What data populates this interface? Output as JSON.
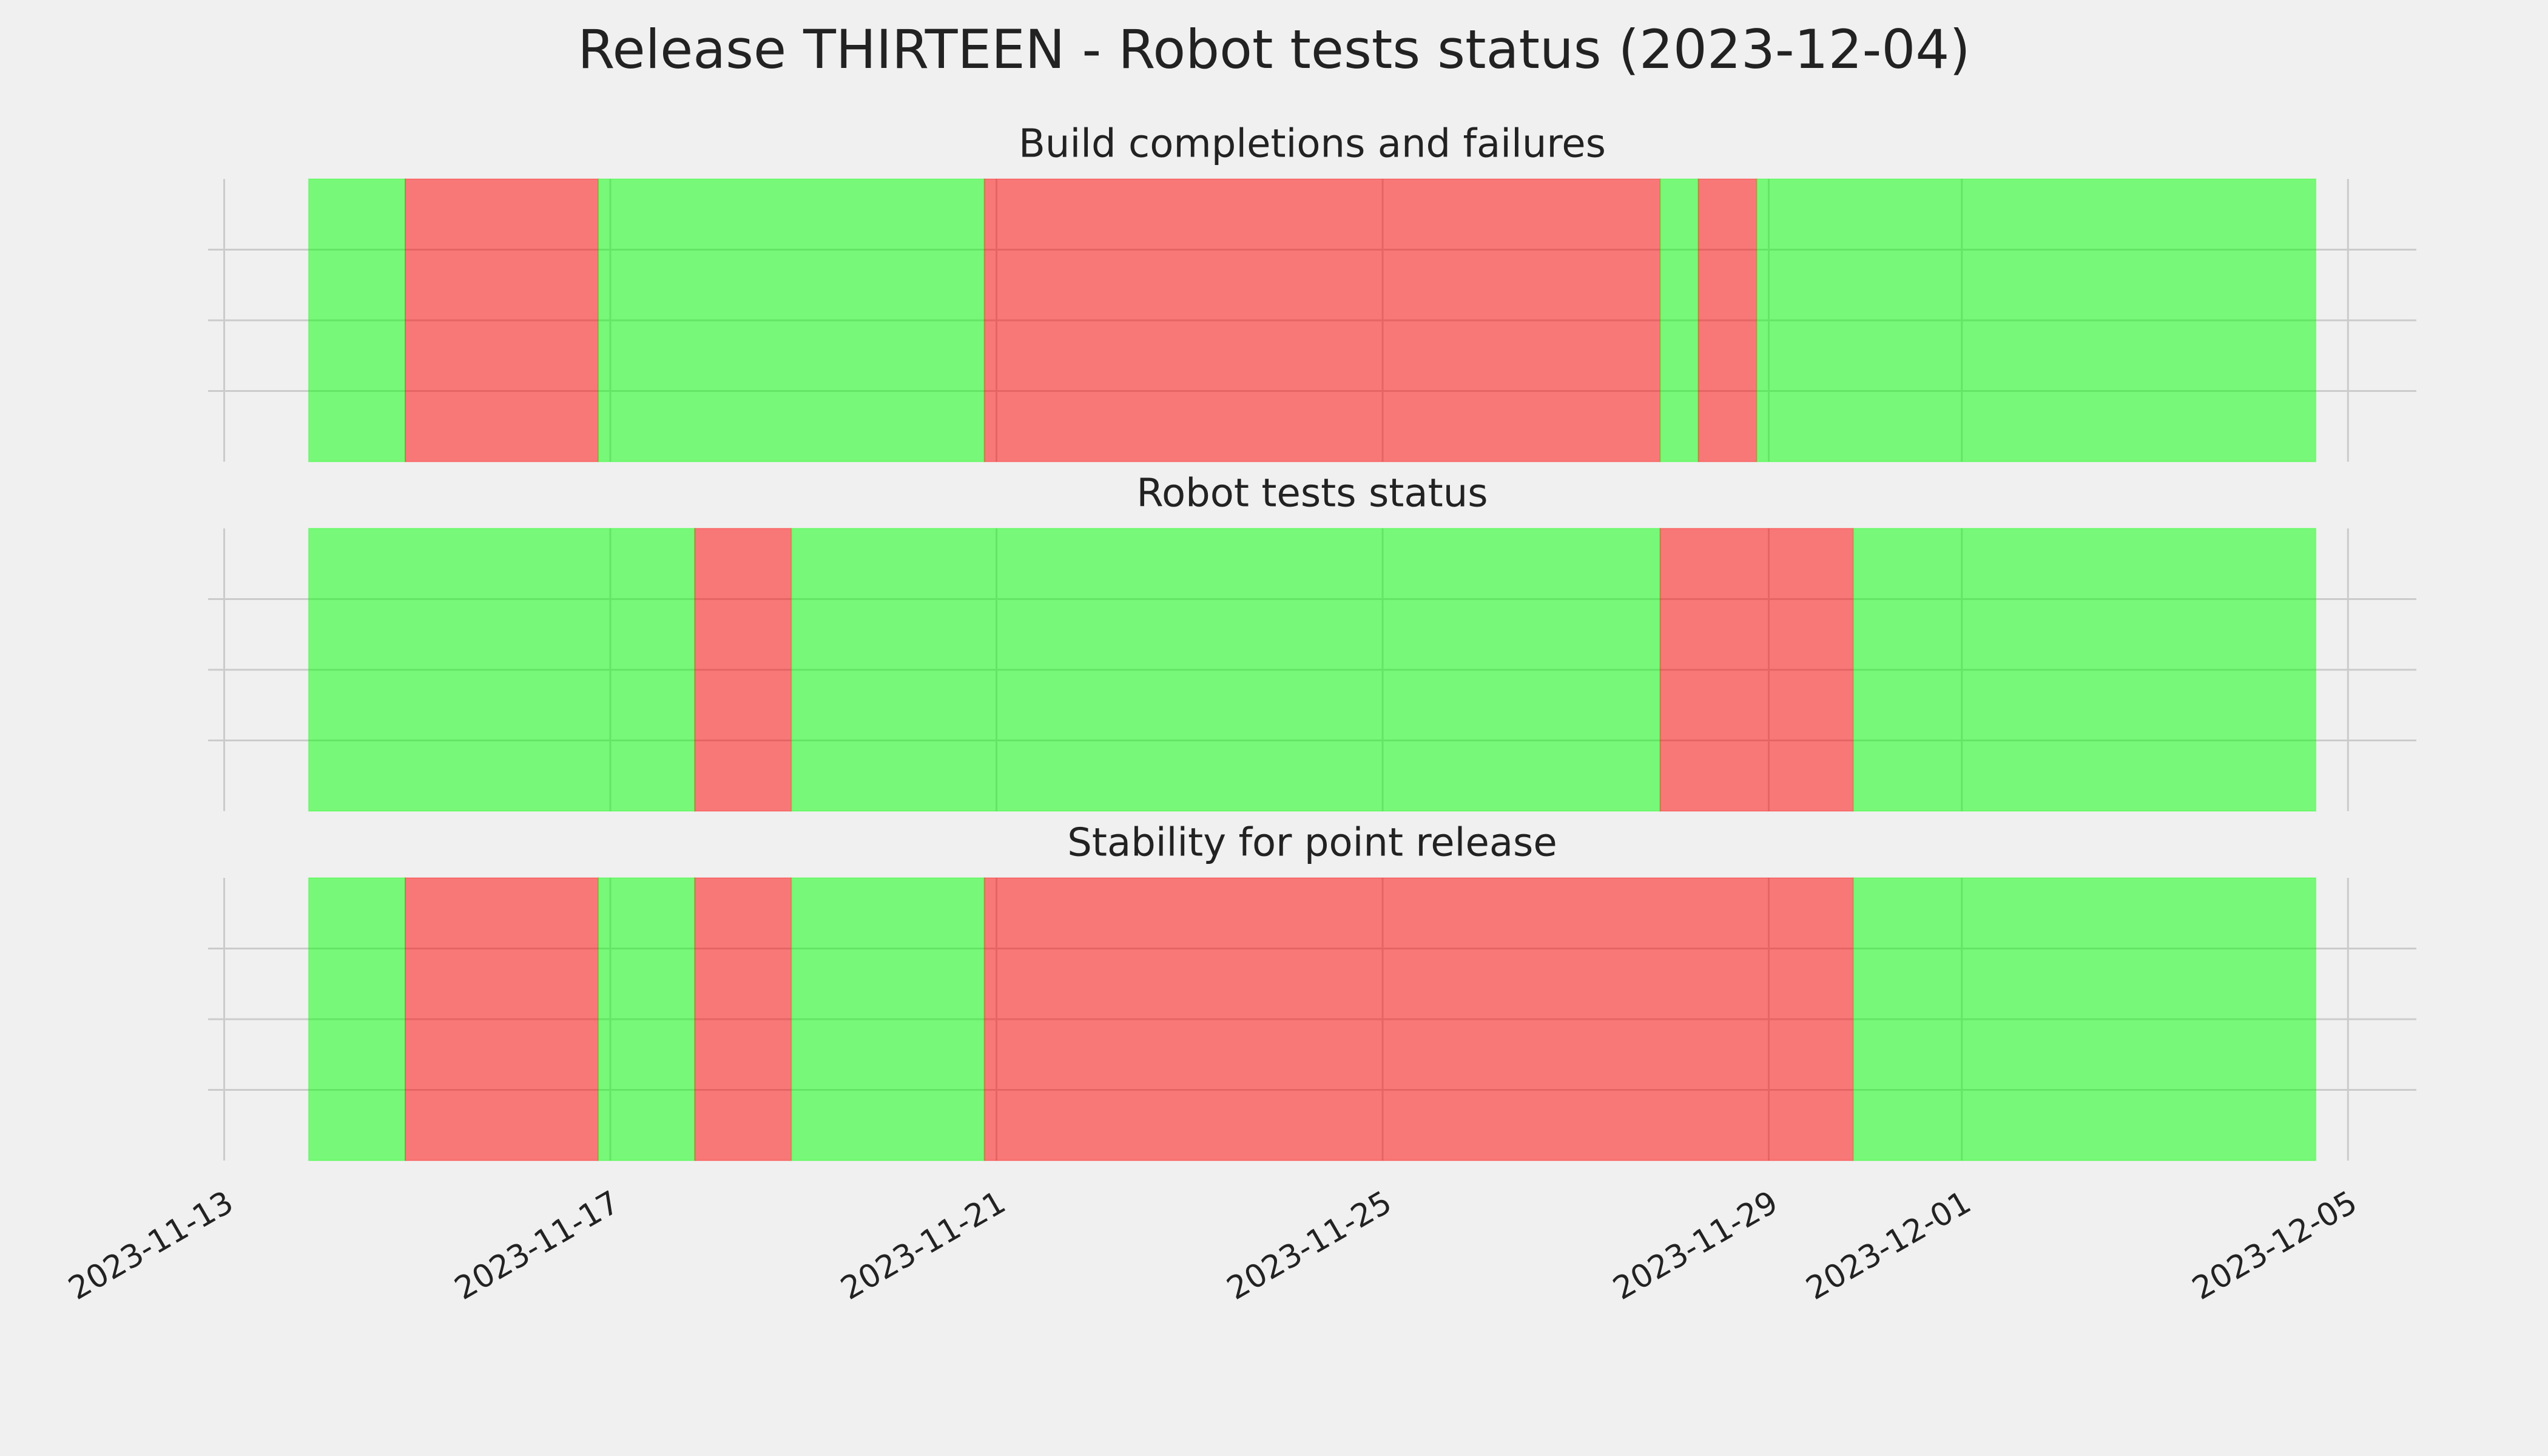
{
  "title": "Release THIRTEEN - Robot tests status (2023-12-04)",
  "xlim": [
    "2023-11-12T20:00",
    "2023-12-05T17:00"
  ],
  "xticks": [
    "2023-11-13",
    "2023-11-17",
    "2023-11-21",
    "2023-11-25",
    "2023-11-29",
    "2023-12-01",
    "2023-12-05"
  ],
  "grid": true,
  "chart_data": [
    {
      "type": "timeline",
      "title": "Build completions and failures",
      "ylim": [
        0,
        1
      ],
      "yticks": [
        0.25,
        0.5,
        0.75
      ],
      "segments": [
        {
          "start": "2023-11-13T21:00",
          "end": "2023-11-14T21:00",
          "color": "#00ff00"
        },
        {
          "start": "2023-11-14T21:00",
          "end": "2023-11-16T21:00",
          "color": "#ff0000"
        },
        {
          "start": "2023-11-16T21:00",
          "end": "2023-11-20T21:00",
          "color": "#00ff00"
        },
        {
          "start": "2023-11-20T21:00",
          "end": "2023-11-27T21:00",
          "color": "#ff0000"
        },
        {
          "start": "2023-11-27T21:00",
          "end": "2023-11-28T06:30",
          "color": "#00ff00"
        },
        {
          "start": "2023-11-28T06:30",
          "end": "2023-11-28T21:00",
          "color": "#ff0000"
        },
        {
          "start": "2023-11-28T21:00",
          "end": "2023-12-04T16:00",
          "color": "#00ff00"
        }
      ]
    },
    {
      "type": "timeline",
      "title": "Robot tests status",
      "ylim": [
        0,
        1
      ],
      "yticks": [
        0.25,
        0.5,
        0.75
      ],
      "segments": [
        {
          "start": "2023-11-13T21:00",
          "end": "2023-11-17T21:00",
          "color": "#00ff00"
        },
        {
          "start": "2023-11-17T21:00",
          "end": "2023-11-18T21:00",
          "color": "#ff0000"
        },
        {
          "start": "2023-11-18T21:00",
          "end": "2023-11-27T21:00",
          "color": "#00ff00"
        },
        {
          "start": "2023-11-27T21:00",
          "end": "2023-11-29T21:00",
          "color": "#ff0000"
        },
        {
          "start": "2023-11-29T21:00",
          "end": "2023-12-04T16:00",
          "color": "#00ff00"
        }
      ]
    },
    {
      "type": "timeline",
      "title": "Stability for point release",
      "ylim": [
        0,
        1
      ],
      "yticks": [
        0.25,
        0.5,
        0.75
      ],
      "segments": [
        {
          "start": "2023-11-13T21:00",
          "end": "2023-11-14T21:00",
          "color": "#00ff00"
        },
        {
          "start": "2023-11-14T21:00",
          "end": "2023-11-16T21:00",
          "color": "#ff0000"
        },
        {
          "start": "2023-11-16T21:00",
          "end": "2023-11-17T21:00",
          "color": "#00ff00"
        },
        {
          "start": "2023-11-17T21:00",
          "end": "2023-11-18T21:00",
          "color": "#ff0000"
        },
        {
          "start": "2023-11-18T21:00",
          "end": "2023-11-20T21:00",
          "color": "#00ff00"
        },
        {
          "start": "2023-11-20T21:00",
          "end": "2023-11-29T21:00",
          "color": "#ff0000"
        },
        {
          "start": "2023-11-29T21:00",
          "end": "2023-12-04T16:00",
          "color": "#00ff00"
        }
      ]
    }
  ]
}
